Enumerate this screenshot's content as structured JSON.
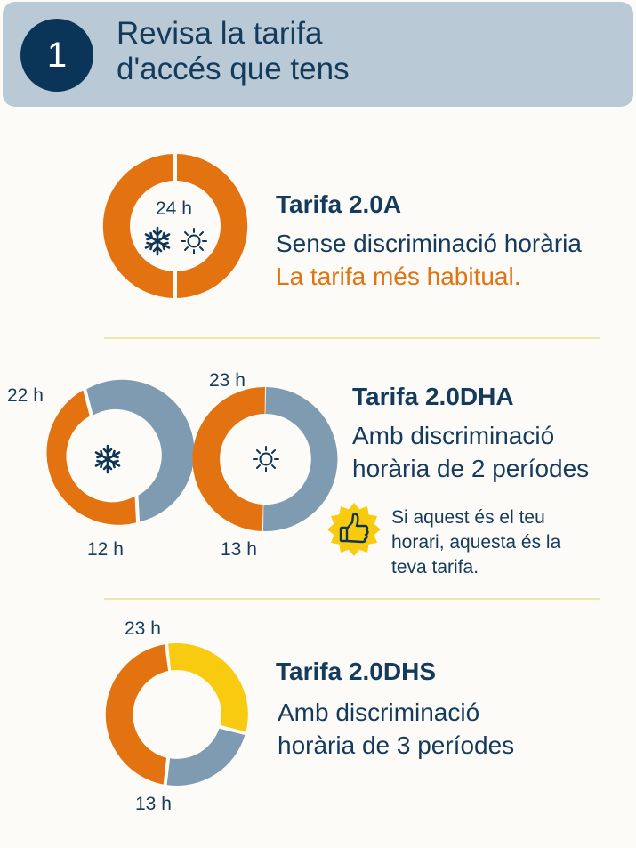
{
  "header": {
    "step_number": "1",
    "title_line1": "Revisa la tarifa",
    "title_line2": "d'accés que tens"
  },
  "colors": {
    "peak": "#e37311",
    "offpeak": "#7f9bb2",
    "supervalle": "#f8cb10",
    "navy": "#0e3556"
  },
  "tariffs": [
    {
      "name": "Tarifa 2.0A",
      "desc_line1": "Sense discriminació horària",
      "highlight": "La tarifa més habitual.",
      "ring_label": "24 h",
      "icons": [
        "snowflake-icon",
        "sun-icon"
      ]
    },
    {
      "name": "Tarifa 2.0DHA",
      "desc_line1": "Amb discriminació",
      "desc_line2": "horària de 2 períodes",
      "winter": {
        "start_label": "22 h",
        "end_label": "12 h",
        "icon": "snowflake-icon"
      },
      "summer": {
        "start_label": "23 h",
        "end_label": "13 h",
        "icon": "sun-icon"
      },
      "tip": {
        "icon": "thumbs-up-icon",
        "line1": "Si aquest és el teu",
        "line2": "horari, aquesta és la",
        "line3": "teva tarifa."
      }
    },
    {
      "name": "Tarifa 2.0DHS",
      "desc_line1": "Amb discriminació",
      "desc_line2": "horària de 3 períodes",
      "start_label": "23 h",
      "end_label": "13 h"
    }
  ]
}
